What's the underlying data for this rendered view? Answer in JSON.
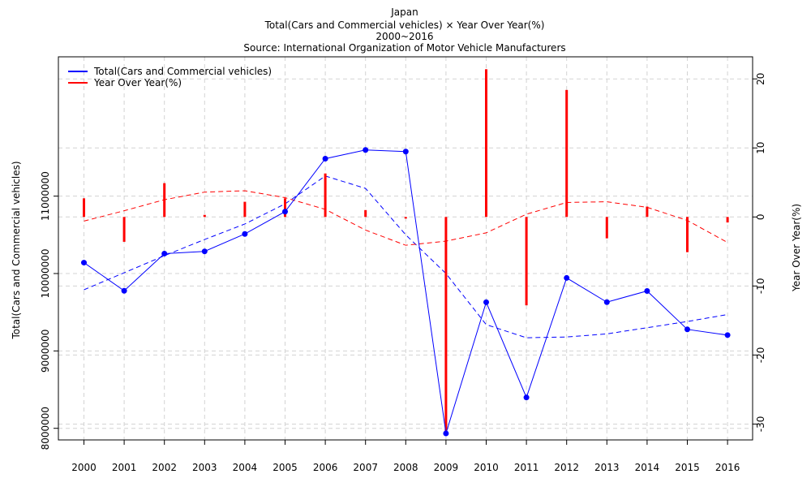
{
  "chart_data": {
    "type": "line",
    "title_lines": [
      "Japan",
      "Total(Cars and Commercial vehicles) × Year Over Year(%)",
      "2000~2016",
      "Source: International Organization of Motor Vehicle Manufacturers"
    ],
    "ylabel_left": "Total(Cars and Commercial vehicles)",
    "ylabel_right": "Year Over Year(%)",
    "categories": [
      "2000",
      "2001",
      "2002",
      "2003",
      "2004",
      "2005",
      "2006",
      "2007",
      "2008",
      "2009",
      "2010",
      "2011",
      "2012",
      "2013",
      "2014",
      "2015",
      "2016"
    ],
    "y_left_ticks": [
      {
        "value": 8000000,
        "label": "8000000"
      },
      {
        "value": 9000000,
        "label": "9000000"
      },
      {
        "value": 10000000,
        "label": "10000000"
      },
      {
        "value": 11000000,
        "label": "11000000"
      }
    ],
    "y_left_range": [
      7850000,
      12800000
    ],
    "y_right_ticks": [
      {
        "value": -30,
        "label": "-30"
      },
      {
        "value": -20,
        "label": "-20"
      },
      {
        "value": -10,
        "label": "-10"
      },
      {
        "value": 0,
        "label": "0"
      },
      {
        "value": 10,
        "label": "10"
      },
      {
        "value": 20,
        "label": "20"
      }
    ],
    "y_right_range": [
      -32.3,
      23.2
    ],
    "grid": true,
    "legend_position": "top-left",
    "series": [
      {
        "name": "Total(Cars and Commercial vehicles)",
        "axis": "left",
        "kind": "line-points",
        "color": "#0000ff",
        "values": [
          10140796,
          9777191,
          10257315,
          10286218,
          10511518,
          10799659,
          11484233,
          11596327,
          11575644,
          7934057,
          9628920,
          8398630,
          9943077,
          9630181,
          9774558,
          9278238,
          9204590
        ]
      },
      {
        "name": "Year Over Year(%)",
        "axis": "right",
        "kind": "bars",
        "color": "#ff0000",
        "values": [
          2.7,
          -3.6,
          4.9,
          0.3,
          2.2,
          2.7,
          6.3,
          1.0,
          -0.2,
          -31.5,
          21.4,
          -12.8,
          18.4,
          -3.1,
          1.5,
          -5.1,
          -0.8
        ]
      }
    ],
    "trend_lines": [
      {
        "axis": "left",
        "color": "#0000ff",
        "dashed": true,
        "values": [
          9790000,
          10010000,
          10230000,
          10440000,
          10640000,
          10900000,
          11260000,
          11100000,
          10500000,
          10000000,
          9340000,
          9170000,
          9180000,
          9220000,
          9300000,
          9380000,
          9470000
        ]
      },
      {
        "axis": "right",
        "color": "#ff0000",
        "dashed": true,
        "values": [
          -0.6,
          0.9,
          2.5,
          3.6,
          3.8,
          2.8,
          1.1,
          -1.9,
          -4.1,
          -3.5,
          -2.3,
          0.4,
          2.1,
          2.2,
          1.4,
          -0.5,
          -3.7
        ]
      }
    ]
  }
}
